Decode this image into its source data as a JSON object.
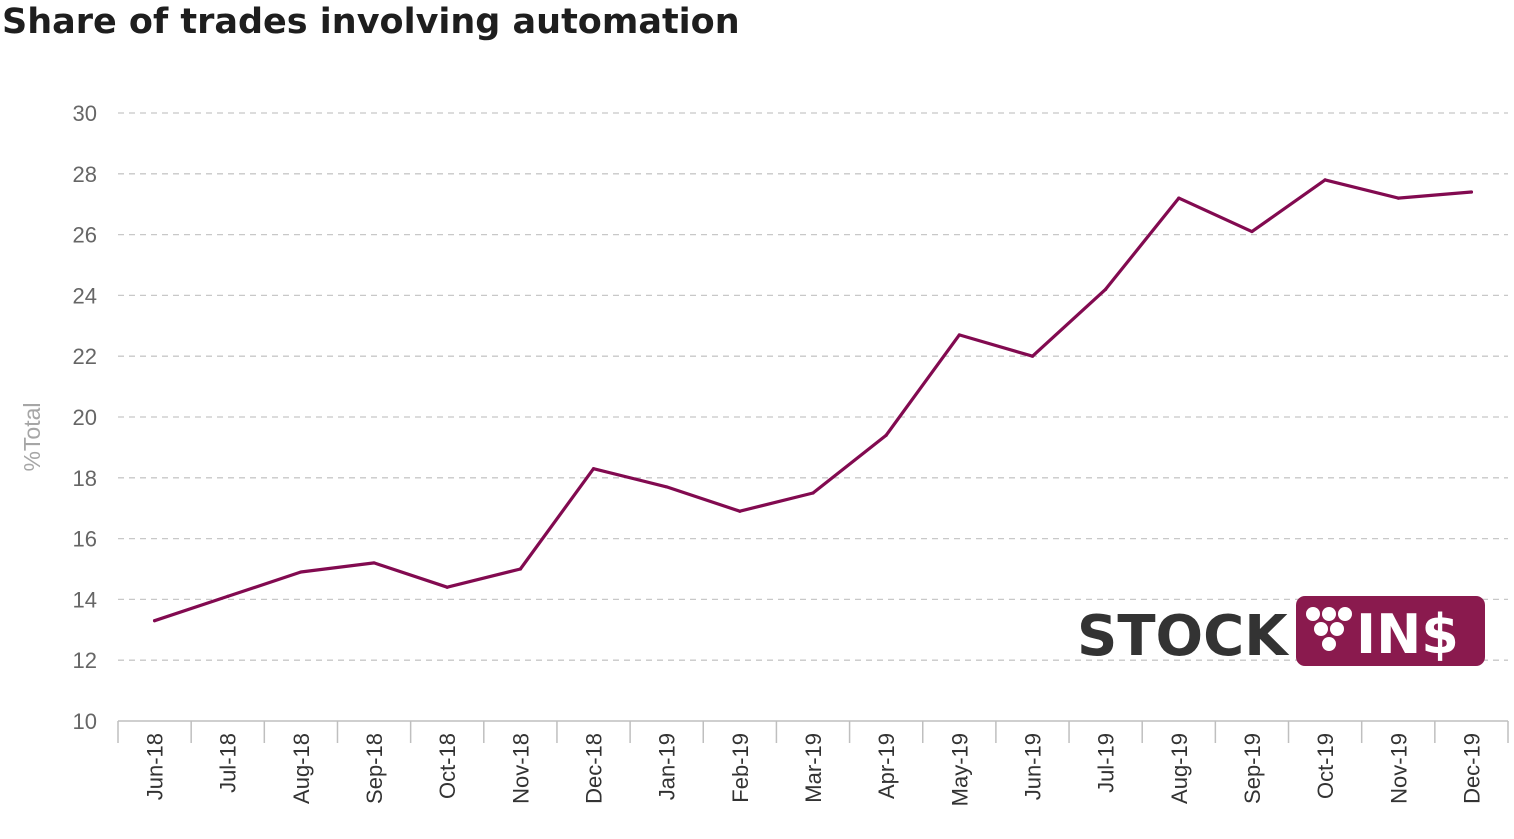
{
  "chart_data": {
    "type": "line",
    "title": "Share of trades involving automation",
    "ylabel": "%Total",
    "xlabel": "",
    "ylim": [
      10,
      30
    ],
    "yticks": [
      10,
      12,
      14,
      16,
      18,
      20,
      22,
      24,
      26,
      28,
      30
    ],
    "grid": true,
    "categories": [
      "Jun-18",
      "Jul-18",
      "Aug-18",
      "Sep-18",
      "Oct-18",
      "Nov-18",
      "Dec-18",
      "Jan-19",
      "Feb-19",
      "Mar-19",
      "Apr-19",
      "May-19",
      "Jun-19",
      "Jul-19",
      "Aug-19",
      "Sep-19",
      "Oct-19",
      "Nov-19",
      "Dec-19"
    ],
    "series": [
      {
        "values": [
          13.3,
          14.1,
          14.9,
          15.2,
          14.4,
          15.0,
          18.3,
          17.7,
          16.9,
          17.5,
          19.4,
          22.7,
          22.0,
          24.2,
          27.2,
          26.1,
          27.8,
          27.2,
          27.4
        ],
        "color": "#820a50"
      }
    ]
  },
  "logo": {
    "text_left": "STOCK",
    "text_right": "IN$",
    "color_dark": "#333333",
    "color_brand": "#8a1a4e"
  }
}
